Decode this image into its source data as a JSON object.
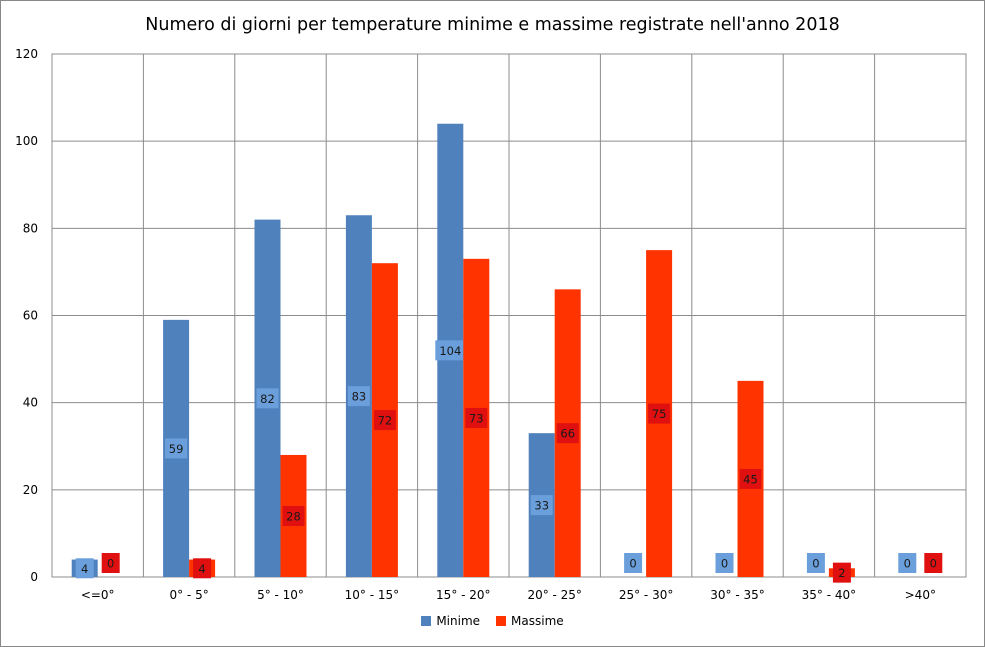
{
  "chart_data": {
    "type": "bar",
    "title": "Numero di giorni per temperature minime e massime registrate nell'anno 2018",
    "categories": [
      "<=0°",
      "0° - 5°",
      "5° - 10°",
      "10° - 15°",
      "15° - 20°",
      "20° - 25°",
      "25° - 30°",
      "30° - 35°",
      "35° - 40°",
      ">40°"
    ],
    "series": [
      {
        "name": "Minime",
        "color": "#4f81bd",
        "label_bg": "#6a9fdc",
        "values": [
          4,
          59,
          82,
          83,
          104,
          33,
          0,
          0,
          0,
          0
        ]
      },
      {
        "name": "Massime",
        "color": "#ff3300",
        "label_bg": "#e01010",
        "values": [
          0,
          4,
          28,
          72,
          73,
          66,
          75,
          45,
          2,
          0
        ]
      }
    ],
    "yticks": [
      "0",
      "20",
      "40",
      "60",
      "80",
      "100",
      "120"
    ],
    "ylim": [
      0,
      120
    ],
    "xlabel": "",
    "ylabel": "",
    "grid": true,
    "legend_position": "bottom"
  }
}
